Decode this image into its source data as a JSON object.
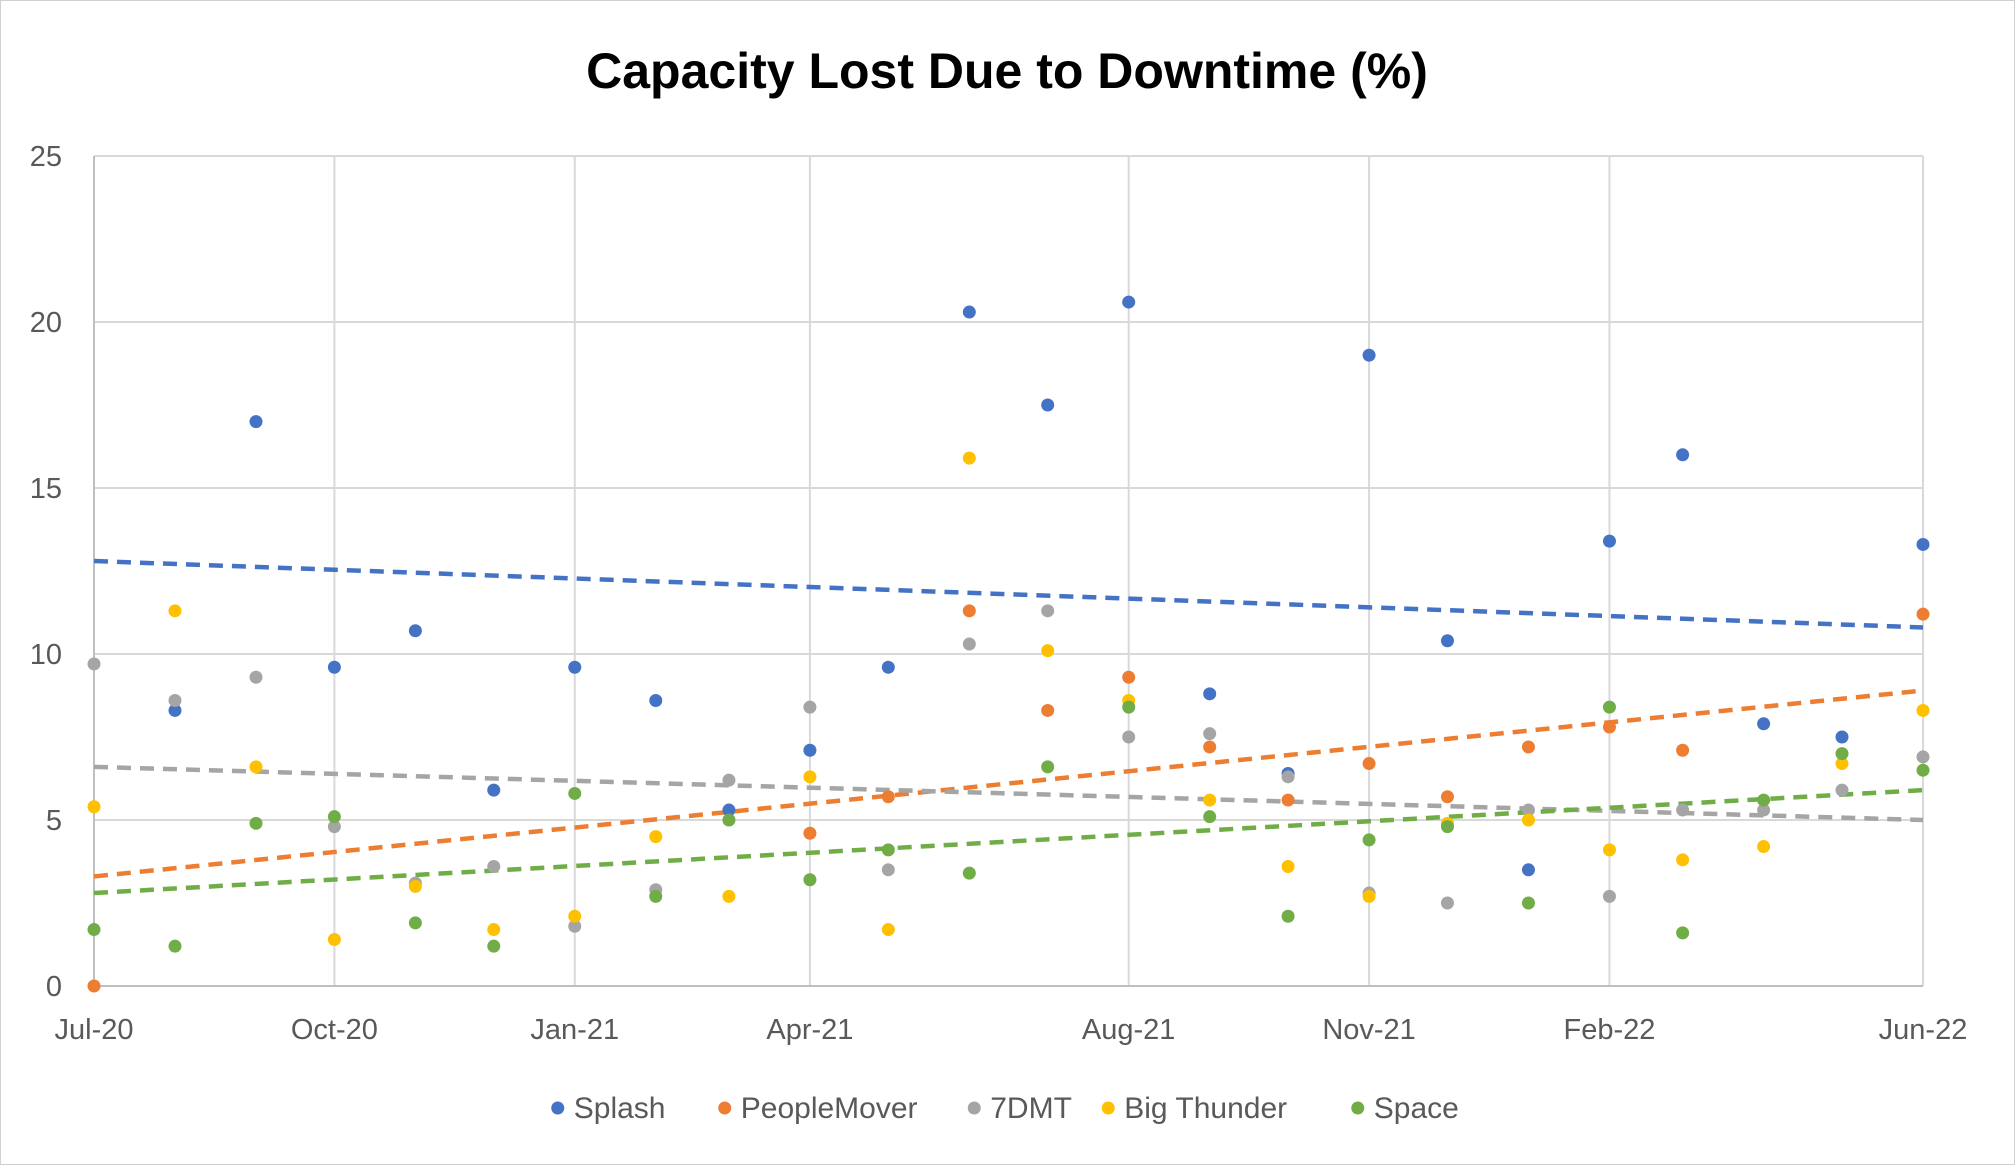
{
  "chart_data": {
    "type": "scatter",
    "title": "Capacity Lost Due to Downtime (%)",
    "xlabel": "",
    "ylabel": "",
    "x_tick_labels": [
      "Jul-20",
      "Oct-20",
      "Jan-21",
      "Apr-21",
      "Aug-21",
      "Nov-21",
      "Feb-22",
      "Jun-22"
    ],
    "x_tick_dates": [
      "2020-07-01",
      "2020-10-01",
      "2021-01-01",
      "2021-04-01",
      "2021-08-01",
      "2021-11-01",
      "2022-02-01",
      "2022-06-01"
    ],
    "xlim": [
      "2020-07-01",
      "2022-06-01"
    ],
    "ylim": [
      0,
      25
    ],
    "y_ticks": [
      0,
      5,
      10,
      15,
      20,
      25
    ],
    "grid": true,
    "legend_position": "bottom",
    "x": [
      "2020-07-01",
      "2020-08-01",
      "2020-09-01",
      "2020-10-01",
      "2020-11-01",
      "2020-12-01",
      "2021-01-01",
      "2021-02-01",
      "2021-03-01",
      "2021-04-01",
      "2021-05-01",
      "2021-06-01",
      "2021-07-01",
      "2021-08-01",
      "2021-09-01",
      "2021-10-01",
      "2021-11-01",
      "2021-12-01",
      "2022-01-01",
      "2022-02-01",
      "2022-03-01",
      "2022-04-01",
      "2022-05-01",
      "2022-06-01"
    ],
    "series": [
      {
        "name": "Splash",
        "color": "#4472C4",
        "values": [
          null,
          8.3,
          17.0,
          9.6,
          10.7,
          5.9,
          9.6,
          8.6,
          5.3,
          7.1,
          9.6,
          20.3,
          17.5,
          20.6,
          8.8,
          6.4,
          19.0,
          10.4,
          3.5,
          13.4,
          16.0,
          7.9,
          7.5,
          13.3
        ],
        "trend": [
          12.8,
          10.8
        ]
      },
      {
        "name": "PeopleMover",
        "color": "#ED7D31",
        "values": [
          0.0,
          null,
          null,
          null,
          null,
          null,
          null,
          null,
          null,
          4.6,
          5.7,
          11.3,
          8.3,
          9.3,
          7.2,
          5.6,
          6.7,
          5.7,
          7.2,
          7.8,
          7.1,
          null,
          null,
          11.2
        ],
        "trend": [
          3.3,
          8.9
        ]
      },
      {
        "name": "7DMT",
        "color": "#A5A5A5",
        "values": [
          9.7,
          8.6,
          9.3,
          4.8,
          3.1,
          3.6,
          1.8,
          2.9,
          6.2,
          8.4,
          3.5,
          10.3,
          11.3,
          7.5,
          7.6,
          6.3,
          2.8,
          2.5,
          5.3,
          2.7,
          5.3,
          5.3,
          5.9,
          6.9
        ],
        "trend": [
          6.6,
          5.0
        ]
      },
      {
        "name": "Big Thunder",
        "color": "#FFC000",
        "values": [
          5.4,
          11.3,
          6.6,
          1.4,
          3.0,
          1.7,
          2.1,
          4.5,
          2.7,
          6.3,
          1.7,
          15.9,
          10.1,
          8.6,
          5.6,
          3.6,
          2.7,
          4.9,
          5.0,
          4.1,
          3.8,
          4.2,
          6.7,
          8.3
        ],
        "trend": null
      },
      {
        "name": "Space",
        "color": "#70AD47",
        "values": [
          1.7,
          1.2,
          4.9,
          5.1,
          1.9,
          1.2,
          5.8,
          2.7,
          5.0,
          3.2,
          4.1,
          3.4,
          6.6,
          8.4,
          5.1,
          2.1,
          4.4,
          4.8,
          2.5,
          8.4,
          1.6,
          5.6,
          7.0,
          6.5
        ],
        "trend": [
          2.8,
          5.9
        ]
      }
    ]
  }
}
